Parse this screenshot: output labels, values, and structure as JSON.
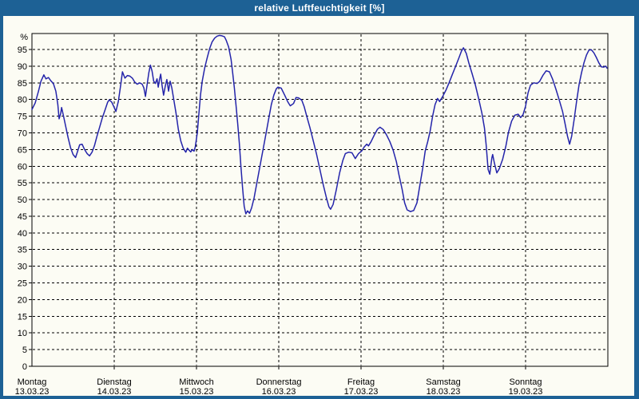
{
  "title": "relative Luftfeuchtigkeit [%]",
  "colors": {
    "titlebar": "#1d6195",
    "background": "#fcfcf4",
    "line": "#2424aa",
    "grid": "#000000",
    "title_text": "#ffffff"
  },
  "chart_data": {
    "type": "line",
    "title": "relative Luftfeuchtigkeit [%]",
    "ylabel": "%",
    "xlabel": "",
    "ylim": [
      0,
      100
    ],
    "grid": true,
    "legend": "none",
    "line_color": "#2424aa",
    "y_ticks": [
      95,
      90,
      85,
      80,
      75,
      70,
      65,
      60,
      55,
      50,
      45,
      40,
      35,
      30,
      25,
      20,
      15,
      10,
      5,
      0
    ],
    "days": [
      {
        "name": "Montag",
        "date": "13.03.23"
      },
      {
        "name": "Dienstag",
        "date": "14.03.23"
      },
      {
        "name": "Mittwoch",
        "date": "15.03.23"
      },
      {
        "name": "Donnerstag",
        "date": "16.03.23"
      },
      {
        "name": "Freitag",
        "date": "17.03.23"
      },
      {
        "name": "Samstag",
        "date": "18.03.23"
      },
      {
        "name": "Sonntag",
        "date": "19.03.23"
      }
    ],
    "x_unit": "days since Monday 00:00",
    "points": [
      [
        0.0,
        77
      ],
      [
        0.04,
        79
      ],
      [
        0.08,
        82.5
      ],
      [
        0.11,
        85.5
      ],
      [
        0.145,
        87.4
      ],
      [
        0.17,
        86.2
      ],
      [
        0.2,
        86.6
      ],
      [
        0.23,
        85.6
      ],
      [
        0.26,
        84.8
      ],
      [
        0.29,
        82.5
      ],
      [
        0.315,
        78.5
      ],
      [
        0.33,
        74.2
      ],
      [
        0.35,
        75.8
      ],
      [
        0.36,
        77.6
      ],
      [
        0.38,
        75.5
      ],
      [
        0.41,
        72
      ],
      [
        0.44,
        68.5
      ],
      [
        0.47,
        65.5
      ],
      [
        0.5,
        63.5
      ],
      [
        0.53,
        62.6
      ],
      [
        0.555,
        64.5
      ],
      [
        0.58,
        66.4
      ],
      [
        0.61,
        66.6
      ],
      [
        0.64,
        65
      ],
      [
        0.67,
        63.8
      ],
      [
        0.7,
        63.1
      ],
      [
        0.73,
        64.2
      ],
      [
        0.76,
        66.2
      ],
      [
        0.79,
        69
      ],
      [
        0.82,
        71.5
      ],
      [
        0.855,
        74.5
      ],
      [
        0.89,
        77
      ],
      [
        0.92,
        79.2
      ],
      [
        0.94,
        79.9
      ],
      [
        0.97,
        79.2
      ],
      [
        1.0,
        77.6
      ],
      [
        1.02,
        76.4
      ],
      [
        1.05,
        79.5
      ],
      [
        1.08,
        84.5
      ],
      [
        1.1,
        88.3
      ],
      [
        1.13,
        86.4
      ],
      [
        1.16,
        87.2
      ],
      [
        1.19,
        87
      ],
      [
        1.22,
        86.4
      ],
      [
        1.25,
        85.2
      ],
      [
        1.28,
        84.6
      ],
      [
        1.31,
        85
      ],
      [
        1.34,
        84.6
      ],
      [
        1.36,
        83.5
      ],
      [
        1.38,
        80.9
      ],
      [
        1.4,
        84.5
      ],
      [
        1.42,
        88
      ],
      [
        1.44,
        90.3
      ],
      [
        1.46,
        88.5
      ],
      [
        1.48,
        85.5
      ],
      [
        1.5,
        84.8
      ],
      [
        1.52,
        86.2
      ],
      [
        1.535,
        83.7
      ],
      [
        1.55,
        86
      ],
      [
        1.565,
        87.6
      ],
      [
        1.58,
        84.5
      ],
      [
        1.6,
        81.3
      ],
      [
        1.62,
        84
      ],
      [
        1.64,
        86
      ],
      [
        1.66,
        82.5
      ],
      [
        1.68,
        85.5
      ],
      [
        1.7,
        83.5
      ],
      [
        1.72,
        80.5
      ],
      [
        1.75,
        76
      ],
      [
        1.78,
        71
      ],
      [
        1.81,
        67.5
      ],
      [
        1.84,
        65.3
      ],
      [
        1.87,
        64.2
      ],
      [
        1.89,
        65.4
      ],
      [
        1.91,
        64.8
      ],
      [
        1.93,
        64.3
      ],
      [
        1.95,
        65
      ],
      [
        1.97,
        64.5
      ],
      [
        1.985,
        65.8
      ],
      [
        2.01,
        70
      ],
      [
        2.03,
        76
      ],
      [
        2.05,
        81.5
      ],
      [
        2.07,
        85.5
      ],
      [
        2.1,
        89.5
      ],
      [
        2.13,
        92.5
      ],
      [
        2.16,
        95.3
      ],
      [
        2.19,
        97.3
      ],
      [
        2.22,
        98.4
      ],
      [
        2.25,
        99
      ],
      [
        2.28,
        99.2
      ],
      [
        2.31,
        99.1
      ],
      [
        2.34,
        98.8
      ],
      [
        2.36,
        97.8
      ],
      [
        2.39,
        95.8
      ],
      [
        2.42,
        92
      ],
      [
        2.44,
        88
      ],
      [
        2.46,
        83.5
      ],
      [
        2.48,
        78.5
      ],
      [
        2.5,
        73
      ],
      [
        2.52,
        67
      ],
      [
        2.54,
        60
      ],
      [
        2.56,
        53.5
      ],
      [
        2.58,
        48
      ],
      [
        2.6,
        45.7
      ],
      [
        2.62,
        46.6
      ],
      [
        2.645,
        45.9
      ],
      [
        2.67,
        47.5
      ],
      [
        2.7,
        50.5
      ],
      [
        2.73,
        54.5
      ],
      [
        2.76,
        58.5
      ],
      [
        2.79,
        62.5
      ],
      [
        2.82,
        66.5
      ],
      [
        2.85,
        70.5
      ],
      [
        2.88,
        74.5
      ],
      [
        2.91,
        78.5
      ],
      [
        2.94,
        81.3
      ],
      [
        2.97,
        83.2
      ],
      [
        2.99,
        83.7
      ],
      [
        3.03,
        83.4
      ],
      [
        3.07,
        81.4
      ],
      [
        3.11,
        79.3
      ],
      [
        3.14,
        78.1
      ],
      [
        3.18,
        78.8
      ],
      [
        3.21,
        80.6
      ],
      [
        3.24,
        80.5
      ],
      [
        3.28,
        79.8
      ],
      [
        3.31,
        77.8
      ],
      [
        3.34,
        75
      ],
      [
        3.38,
        71.5
      ],
      [
        3.42,
        67.5
      ],
      [
        3.46,
        63.5
      ],
      [
        3.5,
        59
      ],
      [
        3.54,
        54.5
      ],
      [
        3.58,
        50.5
      ],
      [
        3.61,
        47.8
      ],
      [
        3.63,
        47.1
      ],
      [
        3.66,
        48.5
      ],
      [
        3.7,
        53
      ],
      [
        3.74,
        58
      ],
      [
        3.78,
        61.8
      ],
      [
        3.81,
        63.8
      ],
      [
        3.85,
        64.2
      ],
      [
        3.89,
        64
      ],
      [
        3.93,
        62.3
      ],
      [
        3.97,
        63.8
      ],
      [
        4.01,
        64.6
      ],
      [
        4.04,
        65.8
      ],
      [
        4.07,
        66.6
      ],
      [
        4.09,
        66.1
      ],
      [
        4.12,
        67.3
      ],
      [
        4.16,
        69.3
      ],
      [
        4.2,
        71.1
      ],
      [
        4.23,
        71.7
      ],
      [
        4.27,
        71
      ],
      [
        4.31,
        69.4
      ],
      [
        4.35,
        67.4
      ],
      [
        4.39,
        64.8
      ],
      [
        4.43,
        61.3
      ],
      [
        4.46,
        57.5
      ],
      [
        4.5,
        53
      ],
      [
        4.53,
        49
      ],
      [
        4.56,
        46.9
      ],
      [
        4.6,
        46.4
      ],
      [
        4.64,
        46.7
      ],
      [
        4.68,
        49
      ],
      [
        4.71,
        53.5
      ],
      [
        4.75,
        59.5
      ],
      [
        4.78,
        64.5
      ],
      [
        4.81,
        67.3
      ],
      [
        4.84,
        70.5
      ],
      [
        4.87,
        75
      ],
      [
        4.9,
        78.5
      ],
      [
        4.93,
        80.3
      ],
      [
        4.955,
        79.4
      ],
      [
        4.99,
        80.8
      ],
      [
        5.03,
        82.7
      ],
      [
        5.07,
        85
      ],
      [
        5.11,
        87.5
      ],
      [
        5.15,
        90
      ],
      [
        5.19,
        92.5
      ],
      [
        5.22,
        94.5
      ],
      [
        5.245,
        95.5
      ],
      [
        5.28,
        93.8
      ],
      [
        5.31,
        91
      ],
      [
        5.35,
        87.8
      ],
      [
        5.39,
        84.3
      ],
      [
        5.43,
        80.2
      ],
      [
        5.47,
        75.8
      ],
      [
        5.5,
        71.5
      ],
      [
        5.52,
        66.5
      ],
      [
        5.545,
        59
      ],
      [
        5.565,
        57.6
      ],
      [
        5.59,
        62.5
      ],
      [
        5.6,
        63.5
      ],
      [
        5.62,
        61
      ],
      [
        5.65,
        58
      ],
      [
        5.68,
        59.2
      ],
      [
        5.72,
        62
      ],
      [
        5.76,
        66
      ],
      [
        5.79,
        70
      ],
      [
        5.83,
        73.5
      ],
      [
        5.87,
        75.3
      ],
      [
        5.91,
        75.6
      ],
      [
        5.94,
        74.6
      ],
      [
        5.97,
        75.5
      ],
      [
        6.0,
        78
      ],
      [
        6.03,
        82
      ],
      [
        6.06,
        84.3
      ],
      [
        6.1,
        85
      ],
      [
        6.14,
        84.8
      ],
      [
        6.17,
        85.4
      ],
      [
        6.21,
        87.2
      ],
      [
        6.25,
        88.6
      ],
      [
        6.29,
        88.3
      ],
      [
        6.33,
        86
      ],
      [
        6.37,
        83
      ],
      [
        6.41,
        79.8
      ],
      [
        6.45,
        76.3
      ],
      [
        6.48,
        72.8
      ],
      [
        6.51,
        69
      ],
      [
        6.535,
        66.6
      ],
      [
        6.56,
        69
      ],
      [
        6.59,
        74
      ],
      [
        6.62,
        79.5
      ],
      [
        6.65,
        84.5
      ],
      [
        6.68,
        88
      ],
      [
        6.71,
        91
      ],
      [
        6.74,
        93.3
      ],
      [
        6.77,
        94.8
      ],
      [
        6.8,
        94.9
      ],
      [
        6.83,
        94
      ],
      [
        6.86,
        92.6
      ],
      [
        6.89,
        91
      ],
      [
        6.92,
        89.8
      ],
      [
        6.95,
        89.7
      ],
      [
        6.975,
        90
      ],
      [
        6.99,
        89.4
      ]
    ]
  }
}
